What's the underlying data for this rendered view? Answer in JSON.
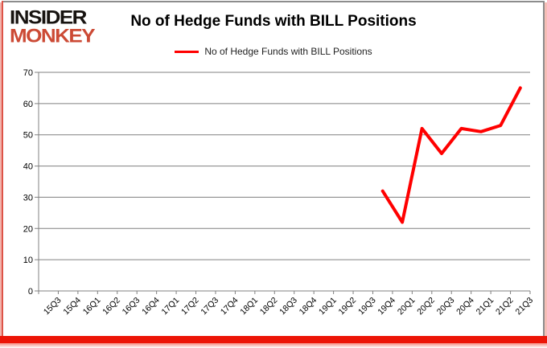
{
  "header": {
    "logo": {
      "line1": "INSIDER",
      "line2": "MONKEY",
      "monkey_color": "#cc4a35"
    },
    "title": "No of Hedge Funds with BILL Positions"
  },
  "legend": {
    "label": "No of Hedge Funds with BILL Positions",
    "swatch_color": "#ff0000"
  },
  "chart_data": {
    "type": "line",
    "title": "No of Hedge Funds with BILL Positions",
    "xlabel": "",
    "ylabel": "",
    "ylim": [
      0,
      70
    ],
    "yticks": [
      0,
      10,
      20,
      30,
      40,
      50,
      60,
      70
    ],
    "grid": true,
    "legend_position": "top",
    "categories": [
      "15Q3",
      "15Q4",
      "16Q1",
      "16Q2",
      "16Q3",
      "16Q4",
      "17Q1",
      "17Q2",
      "17Q3",
      "17Q4",
      "18Q1",
      "18Q2",
      "18Q3",
      "18Q4",
      "19Q1",
      "19Q2",
      "19Q3",
      "19Q4",
      "20Q1",
      "20Q2",
      "20Q3",
      "20Q4",
      "21Q1",
      "21Q2",
      "21Q3"
    ],
    "series": [
      {
        "name": "No of Hedge Funds with BILL Positions",
        "color": "#ff0000",
        "values": [
          null,
          null,
          null,
          null,
          null,
          null,
          null,
          null,
          null,
          null,
          null,
          null,
          null,
          null,
          null,
          null,
          null,
          32,
          22,
          52,
          44,
          52,
          51,
          53,
          65
        ]
      }
    ],
    "colors": {
      "gridline": "#808080",
      "axis": "#808080",
      "tick_label": "#000000"
    }
  }
}
